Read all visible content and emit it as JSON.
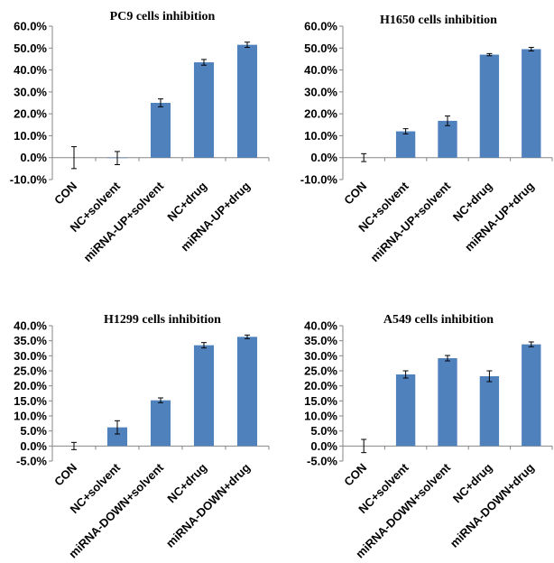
{
  "chart_data": [
    {
      "type": "bar",
      "title": "PC9 cells inhibition",
      "categories": [
        "CON",
        "NC+solvent",
        "miRNA-UP+solvent",
        "NC+drug",
        "miRNA-UP+drug"
      ],
      "values": [
        0.0,
        -0.2,
        25.0,
        43.5,
        51.5
      ],
      "errors": [
        5.0,
        3.0,
        1.8,
        1.3,
        1.2
      ],
      "ylim": [
        -10,
        60
      ],
      "yticks": [
        "-10.0%",
        "0.0%",
        "10.0%",
        "20.0%",
        "30.0%",
        "40.0%",
        "50.0%",
        "60.0%"
      ],
      "colors": {
        "bar": "#4f81bd"
      }
    },
    {
      "type": "bar",
      "title": "H1650 cells inhibition",
      "categories": [
        "CON",
        "NC+solvent",
        "miRNA-UP+solvent",
        "NC+drug",
        "miRNA-UP+drug"
      ],
      "values": [
        0.0,
        12.0,
        16.8,
        47.0,
        49.5
      ],
      "errors": [
        1.8,
        1.2,
        2.2,
        0.5,
        0.8
      ],
      "ylim": [
        -10,
        60
      ],
      "yticks": [
        "-10.0%",
        "0.0%",
        "10.0%",
        "20.0%",
        "30.0%",
        "40.0%",
        "50.0%",
        "60.0%"
      ],
      "colors": {
        "bar": "#4f81bd"
      }
    },
    {
      "type": "bar",
      "title": "H1299 cells inhibition",
      "categories": [
        "CON",
        "NC+solvent",
        "miRNA-DOWN+solvent",
        "NC+drug",
        "miRNA-DOWN+drug"
      ],
      "values": [
        0.0,
        6.2,
        15.2,
        33.5,
        36.3
      ],
      "errors": [
        1.2,
        2.2,
        0.8,
        0.9,
        0.6
      ],
      "ylim": [
        -5,
        40
      ],
      "yticks": [
        "-5.0%",
        "0.0%",
        "5.0%",
        "10.0%",
        "15.0%",
        "20.0%",
        "25.0%",
        "30.0%",
        "35.0%",
        "40.0%"
      ],
      "colors": {
        "bar": "#4f81bd"
      }
    },
    {
      "type": "bar",
      "title": "A549 cells inhibition",
      "categories": [
        "CON",
        "NC+solvent",
        "miRNA-DOWN+solvent",
        "NC+drug",
        "miRNA-DOWN+drug"
      ],
      "values": [
        0.0,
        23.8,
        29.2,
        23.2,
        33.8
      ],
      "errors": [
        2.2,
        1.2,
        0.9,
        1.8,
        0.8
      ],
      "ylim": [
        -5,
        40
      ],
      "yticks": [
        "-5.0%",
        "0.0%",
        "5.0%",
        "10.0%",
        "15.0%",
        "20.0%",
        "25.0%",
        "30.0%",
        "35.0%",
        "40.0%"
      ],
      "colors": {
        "bar": "#4f81bd"
      }
    }
  ]
}
